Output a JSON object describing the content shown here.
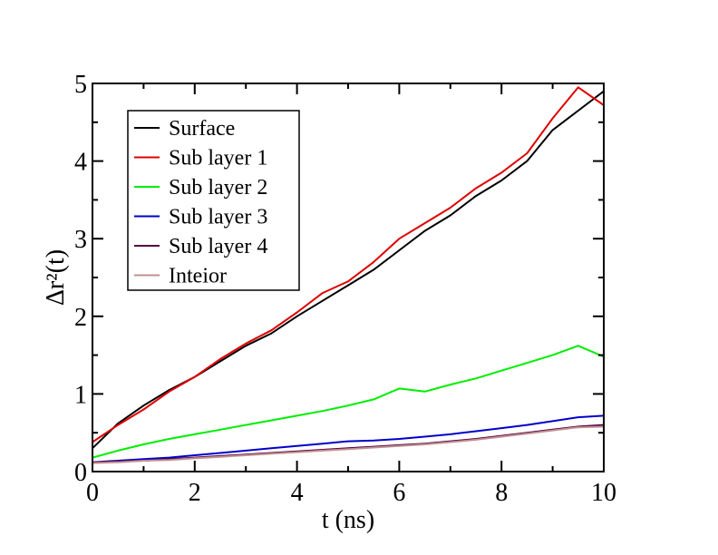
{
  "chart_data": {
    "type": "line",
    "xlabel": "t (ns)",
    "ylabel": "Δr²(t)",
    "xlim": [
      0,
      10
    ],
    "ylim": [
      0,
      5
    ],
    "xticks": [
      0,
      2,
      4,
      6,
      8,
      10
    ],
    "yticks": [
      0,
      1,
      2,
      3,
      4,
      5
    ],
    "x_tick_labels": [
      "0",
      "2",
      "4",
      "6",
      "8",
      "10"
    ],
    "y_tick_labels": [
      "0",
      "1",
      "2",
      "3",
      "4",
      "5"
    ],
    "legend_placement": "top-left",
    "series": [
      {
        "name": "Surface",
        "color": "#000000",
        "x": [
          0,
          0.5,
          1,
          1.5,
          2,
          2.5,
          3,
          3.5,
          4,
          4.5,
          5,
          5.5,
          6,
          6.5,
          7,
          7.5,
          8,
          8.5,
          9,
          9.5,
          10
        ],
        "y": [
          0.3,
          0.62,
          0.85,
          1.05,
          1.22,
          1.42,
          1.62,
          1.78,
          2.0,
          2.2,
          2.4,
          2.6,
          2.85,
          3.1,
          3.3,
          3.55,
          3.75,
          4.0,
          4.4,
          4.65,
          4.9
        ]
      },
      {
        "name": "Sub layer 1",
        "color": "#e00000",
        "x": [
          0,
          0.5,
          1,
          1.5,
          2,
          2.5,
          3,
          3.5,
          4,
          4.5,
          5,
          5.5,
          6,
          6.5,
          7,
          7.5,
          8,
          8.5,
          9,
          9.5,
          10
        ],
        "y": [
          0.38,
          0.6,
          0.8,
          1.03,
          1.22,
          1.45,
          1.65,
          1.82,
          2.05,
          2.3,
          2.45,
          2.7,
          3.0,
          3.2,
          3.4,
          3.65,
          3.85,
          4.1,
          4.55,
          4.95,
          4.72
        ]
      },
      {
        "name": "Sub layer 2",
        "color": "#00ee00",
        "x": [
          0,
          0.5,
          1,
          1.5,
          2,
          2.5,
          3,
          3.5,
          4,
          4.5,
          5,
          5.5,
          6,
          6.5,
          7,
          7.5,
          8,
          8.5,
          9,
          9.5,
          10
        ],
        "y": [
          0.18,
          0.27,
          0.35,
          0.42,
          0.48,
          0.54,
          0.6,
          0.66,
          0.72,
          0.78,
          0.85,
          0.93,
          1.07,
          1.03,
          1.12,
          1.2,
          1.3,
          1.4,
          1.5,
          1.62,
          1.48
        ]
      },
      {
        "name": "Sub layer 3",
        "color": "#0000cc",
        "x": [
          0,
          0.5,
          1,
          1.5,
          2,
          2.5,
          3,
          3.5,
          4,
          4.5,
          5,
          5.5,
          6,
          6.5,
          7,
          7.5,
          8,
          8.5,
          9,
          9.5,
          10
        ],
        "y": [
          0.12,
          0.14,
          0.16,
          0.18,
          0.21,
          0.24,
          0.27,
          0.3,
          0.33,
          0.36,
          0.39,
          0.4,
          0.42,
          0.45,
          0.48,
          0.52,
          0.56,
          0.6,
          0.65,
          0.7,
          0.72
        ]
      },
      {
        "name": "Sub layer 4",
        "color": "#550044",
        "x": [
          0,
          0.5,
          1,
          1.5,
          2,
          2.5,
          3,
          3.5,
          4,
          4.5,
          5,
          5.5,
          6,
          6.5,
          7,
          7.5,
          8,
          8.5,
          9,
          9.5,
          10
        ],
        "y": [
          0.12,
          0.13,
          0.14,
          0.16,
          0.18,
          0.2,
          0.22,
          0.24,
          0.26,
          0.28,
          0.3,
          0.32,
          0.34,
          0.36,
          0.39,
          0.42,
          0.46,
          0.5,
          0.54,
          0.58,
          0.6
        ]
      },
      {
        "name": "Inteior",
        "color": "#c09090",
        "x": [
          0,
          0.5,
          1,
          1.5,
          2,
          2.5,
          3,
          3.5,
          4,
          4.5,
          5,
          5.5,
          6,
          6.5,
          7,
          7.5,
          8,
          8.5,
          9,
          9.5,
          10
        ],
        "y": [
          0.11,
          0.12,
          0.14,
          0.15,
          0.17,
          0.19,
          0.21,
          0.23,
          0.25,
          0.27,
          0.29,
          0.31,
          0.33,
          0.35,
          0.38,
          0.41,
          0.45,
          0.49,
          0.53,
          0.57,
          0.58
        ]
      }
    ]
  }
}
